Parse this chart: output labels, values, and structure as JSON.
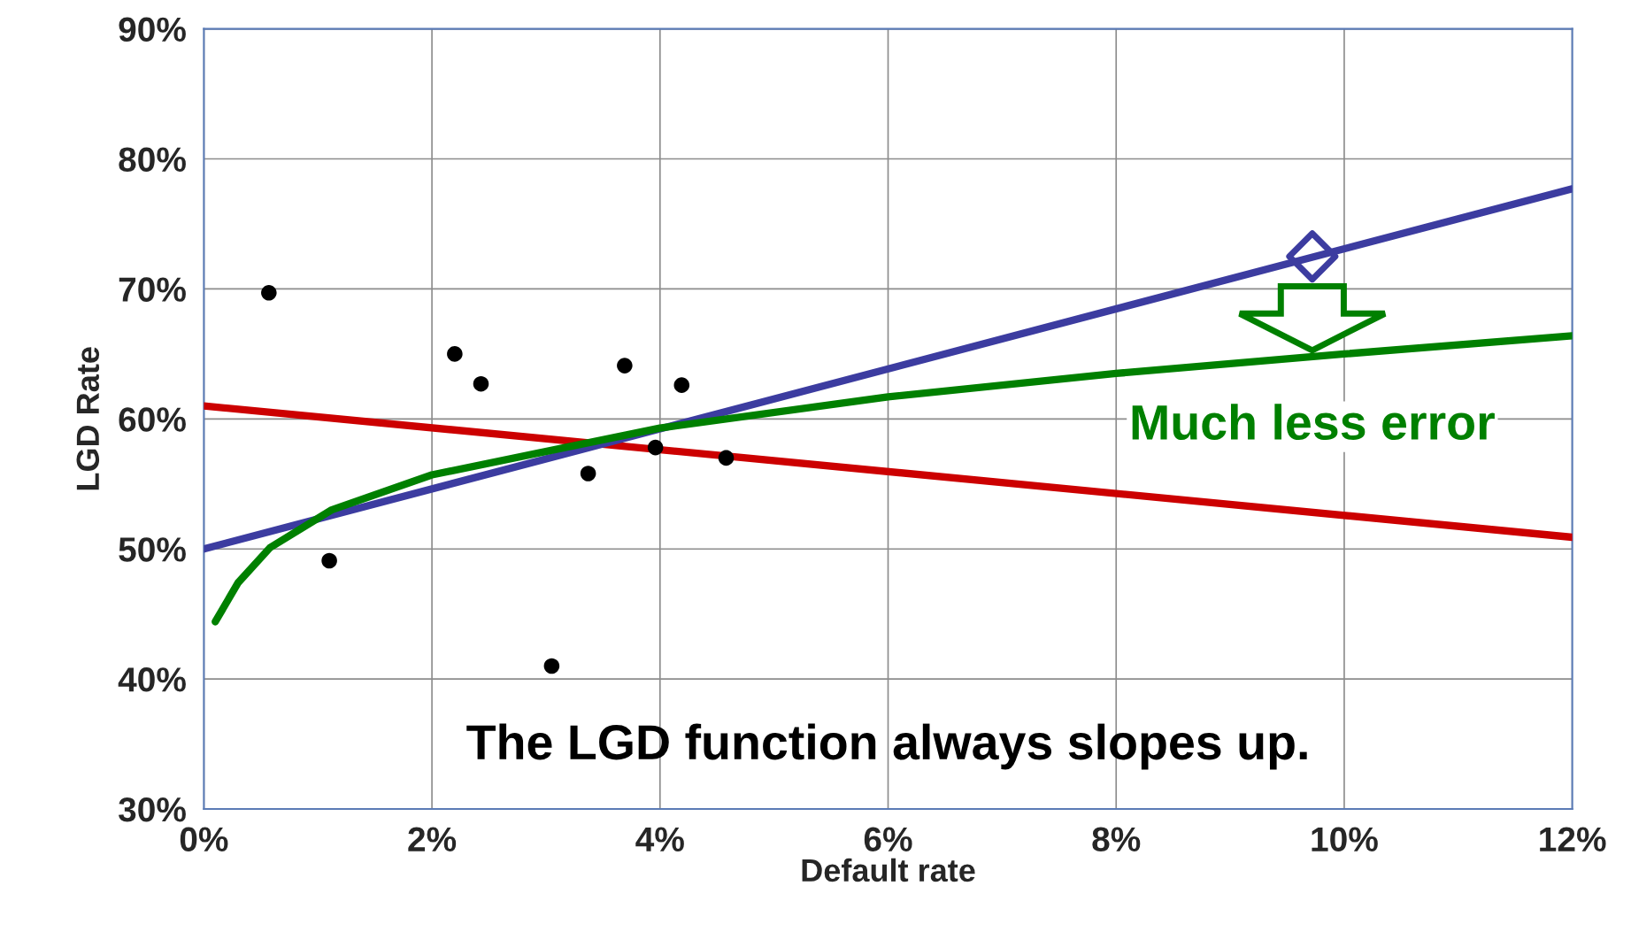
{
  "chart_data": {
    "type": "line",
    "xlabel": "Default rate",
    "ylabel": "LGD Rate",
    "xlim": [
      0,
      12
    ],
    "ylim": [
      30,
      90
    ],
    "xticks": [
      {
        "value": 0,
        "label": "0%"
      },
      {
        "value": 2,
        "label": "2%"
      },
      {
        "value": 4,
        "label": "4%"
      },
      {
        "value": 6,
        "label": "6%"
      },
      {
        "value": 8,
        "label": "8%"
      },
      {
        "value": 10,
        "label": "10%"
      },
      {
        "value": 12,
        "label": "12%"
      }
    ],
    "yticks": [
      {
        "value": 30,
        "label": "30%"
      },
      {
        "value": 40,
        "label": "40%"
      },
      {
        "value": 50,
        "label": "50%"
      },
      {
        "value": 60,
        "label": "60%"
      },
      {
        "value": 70,
        "label": "70%"
      },
      {
        "value": 80,
        "label": "80%"
      },
      {
        "value": 90,
        "label": "90%"
      }
    ],
    "grid": true,
    "legend": false,
    "series": [
      {
        "type": "scatter",
        "color": "#000000",
        "marker": "circle",
        "x": [
          0.57,
          1.1,
          2.2,
          2.43,
          3.05,
          3.37,
          3.69,
          3.96,
          4.19,
          4.58
        ],
        "values": [
          69.7,
          49.1,
          65.0,
          62.7,
          41.0,
          55.8,
          64.1,
          57.8,
          62.6,
          57.0
        ]
      },
      {
        "color": "#cc0000",
        "x": [
          0,
          12
        ],
        "values": [
          61.0,
          50.9
        ]
      },
      {
        "color": "#3c3ca0",
        "x": [
          0,
          12
        ],
        "values": [
          50.0,
          77.7
        ]
      },
      {
        "color": "#008000",
        "x": [
          0.1,
          0.3,
          0.58,
          1.12,
          2,
          4,
          6,
          8,
          10,
          12
        ],
        "values": [
          44.4,
          47.4,
          50.1,
          53.0,
          55.7,
          59.3,
          61.7,
          63.5,
          65.0,
          66.4
        ]
      },
      {
        "type": "scatter",
        "color": "#3c3ca0",
        "marker": "diamond",
        "x": [
          9.72
        ],
        "values": [
          72.5
        ]
      }
    ],
    "annotations": [
      "Much less error",
      "The LGD function always slopes up."
    ]
  }
}
